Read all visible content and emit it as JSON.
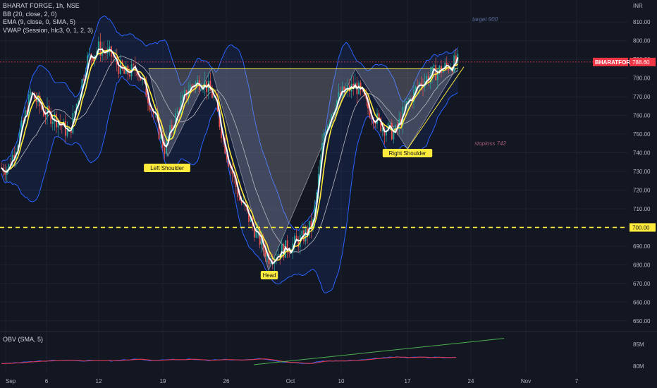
{
  "legend": [
    "BHARAT FORGE, 1h, NSE",
    "BB (20, close, 2, 0)",
    "EMA (9, close, 0, SMA, 5)",
    "VWAP (Session, hlc3, 0, 1, 2, 3)"
  ],
  "obv_label": "OBV (SMA, 5)",
  "price_axis": {
    "currency": "INR",
    "ticks": [
      650,
      660,
      670,
      680,
      690,
      700,
      710,
      720,
      730,
      740,
      750,
      760,
      770,
      780,
      790,
      800,
      810
    ]
  },
  "obv_axis": {
    "ticks": [
      "85M",
      "80M"
    ]
  },
  "time_axis": [
    "Sep",
    "6",
    "12",
    "19",
    "26",
    "Oct",
    "10",
    "17",
    "24",
    "Nov",
    "7"
  ],
  "annotations": {
    "target": "target 900",
    "stoploss": "stoploss 742",
    "left_shoulder": "Left Shoulder",
    "head": "Head",
    "right_shoulder": "Right Shoulder"
  },
  "symbol_tag": "BHARATFORG",
  "last_price": "788.60",
  "level_tag": "700.00",
  "colors": {
    "background": "#131722",
    "up": "#26a69a",
    "down": "#ef5350",
    "bb": "#2962ff",
    "ema": "#ffeb3b",
    "vwap": "#ffffff",
    "pattern": "#787b86",
    "level_line": "#ffeb3b",
    "price_tag": "#f23645",
    "obv": "#2962ff",
    "obv_sma": "#f23645",
    "trend": "#4caf50"
  },
  "chart_data": {
    "type": "line",
    "subtype": "candlestick",
    "symbol": "BHARAT FORGE",
    "interval": "1h",
    "exchange": "NSE",
    "ylim": [
      645,
      815
    ],
    "pattern": "inverse head and shoulders",
    "neckline": 785,
    "horizontal_level": 700,
    "last_price": 788.6,
    "close_path": [
      {
        "t": "Sep 1",
        "v": 732
      },
      {
        "t": "Sep 4",
        "v": 752
      },
      {
        "t": "Sep 5",
        "v": 772
      },
      {
        "t": "Sep 6",
        "v": 762
      },
      {
        "t": "Sep 7",
        "v": 758
      },
      {
        "t": "Sep 8",
        "v": 750
      },
      {
        "t": "Sep 11",
        "v": 790
      },
      {
        "t": "Sep 12",
        "v": 796
      },
      {
        "t": "Sep 13",
        "v": 792
      },
      {
        "t": "Sep 14",
        "v": 782
      },
      {
        "t": "Sep 15",
        "v": 785
      },
      {
        "t": "Sep 18",
        "v": 768
      },
      {
        "t": "Sep 19",
        "v": 742
      },
      {
        "t": "Sep 20",
        "v": 760
      },
      {
        "t": "Sep 21",
        "v": 775
      },
      {
        "t": "Sep 22",
        "v": 779
      },
      {
        "t": "Sep 25",
        "v": 770
      },
      {
        "t": "Sep 26",
        "v": 742
      },
      {
        "t": "Sep 27",
        "v": 715
      },
      {
        "t": "Sep 28",
        "v": 698
      },
      {
        "t": "Sep 29",
        "v": 684
      },
      {
        "t": "Oct 3",
        "v": 690
      },
      {
        "t": "Oct 4",
        "v": 694
      },
      {
        "t": "Oct 5",
        "v": 702
      },
      {
        "t": "Oct 6",
        "v": 752
      },
      {
        "t": "Oct 9",
        "v": 766
      },
      {
        "t": "Oct 10",
        "v": 772
      },
      {
        "t": "Oct 11",
        "v": 776
      },
      {
        "t": "Oct 12",
        "v": 764
      },
      {
        "t": "Oct 13",
        "v": 755
      },
      {
        "t": "Oct 16",
        "v": 750
      },
      {
        "t": "Oct 17",
        "v": 765
      },
      {
        "t": "Oct 18",
        "v": 777
      },
      {
        "t": "Oct 19",
        "v": 782
      },
      {
        "t": "Oct 20",
        "v": 786
      },
      {
        "t": "Oct 21",
        "v": 788.6
      }
    ],
    "obv": {
      "start": 80.6,
      "end": 85.6,
      "unit": "M"
    }
  }
}
